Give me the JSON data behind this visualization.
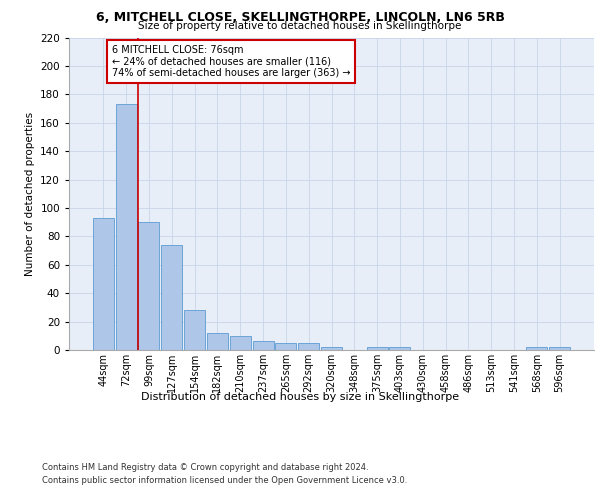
{
  "title1": "6, MITCHELL CLOSE, SKELLINGTHORPE, LINCOLN, LN6 5RB",
  "title2": "Size of property relative to detached houses in Skellingthorpe",
  "xlabel": "Distribution of detached houses by size in Skellingthorpe",
  "ylabel": "Number of detached properties",
  "categories": [
    "44sqm",
    "72sqm",
    "99sqm",
    "127sqm",
    "154sqm",
    "182sqm",
    "210sqm",
    "237sqm",
    "265sqm",
    "292sqm",
    "320sqm",
    "348sqm",
    "375sqm",
    "403sqm",
    "430sqm",
    "458sqm",
    "486sqm",
    "513sqm",
    "541sqm",
    "568sqm",
    "596sqm"
  ],
  "values": [
    93,
    173,
    90,
    74,
    28,
    12,
    10,
    6,
    5,
    5,
    2,
    0,
    2,
    2,
    0,
    0,
    0,
    0,
    0,
    2,
    2
  ],
  "bar_color": "#aec6e8",
  "bar_edge_color": "#5b9bd5",
  "grid_color": "#c8d4e8",
  "background_color": "#e8eef8",
  "marker_line_color": "#cc0000",
  "annotation_text": "6 MITCHELL CLOSE: 76sqm\n← 24% of detached houses are smaller (116)\n74% of semi-detached houses are larger (363) →",
  "annotation_box_color": "#ffffff",
  "annotation_box_edge": "#cc0000",
  "footer1": "Contains HM Land Registry data © Crown copyright and database right 2024.",
  "footer2": "Contains public sector information licensed under the Open Government Licence v3.0.",
  "ylim": [
    0,
    220
  ],
  "yticks": [
    0,
    20,
    40,
    60,
    80,
    100,
    120,
    140,
    160,
    180,
    200,
    220
  ]
}
